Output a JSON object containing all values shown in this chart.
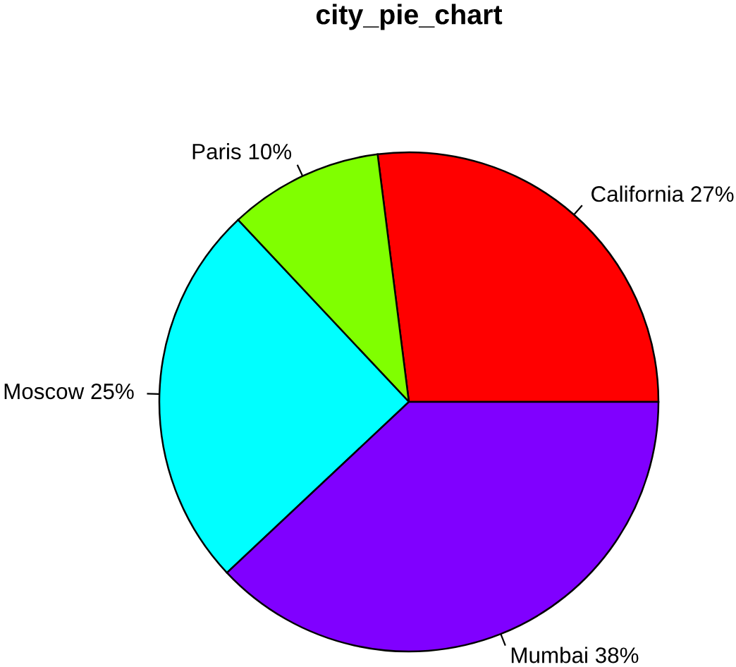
{
  "chart_data": {
    "type": "pie",
    "title": "city_pie_chart",
    "categories": [
      "California",
      "Paris",
      "Moscow",
      "Mumbai"
    ],
    "values": [
      27,
      10,
      25,
      38
    ],
    "value_labels": [
      "27%",
      "10%",
      "25%",
      "38%"
    ],
    "colors": [
      "#ff0000",
      "#80ff00",
      "#00ffff",
      "#8000ff"
    ]
  }
}
